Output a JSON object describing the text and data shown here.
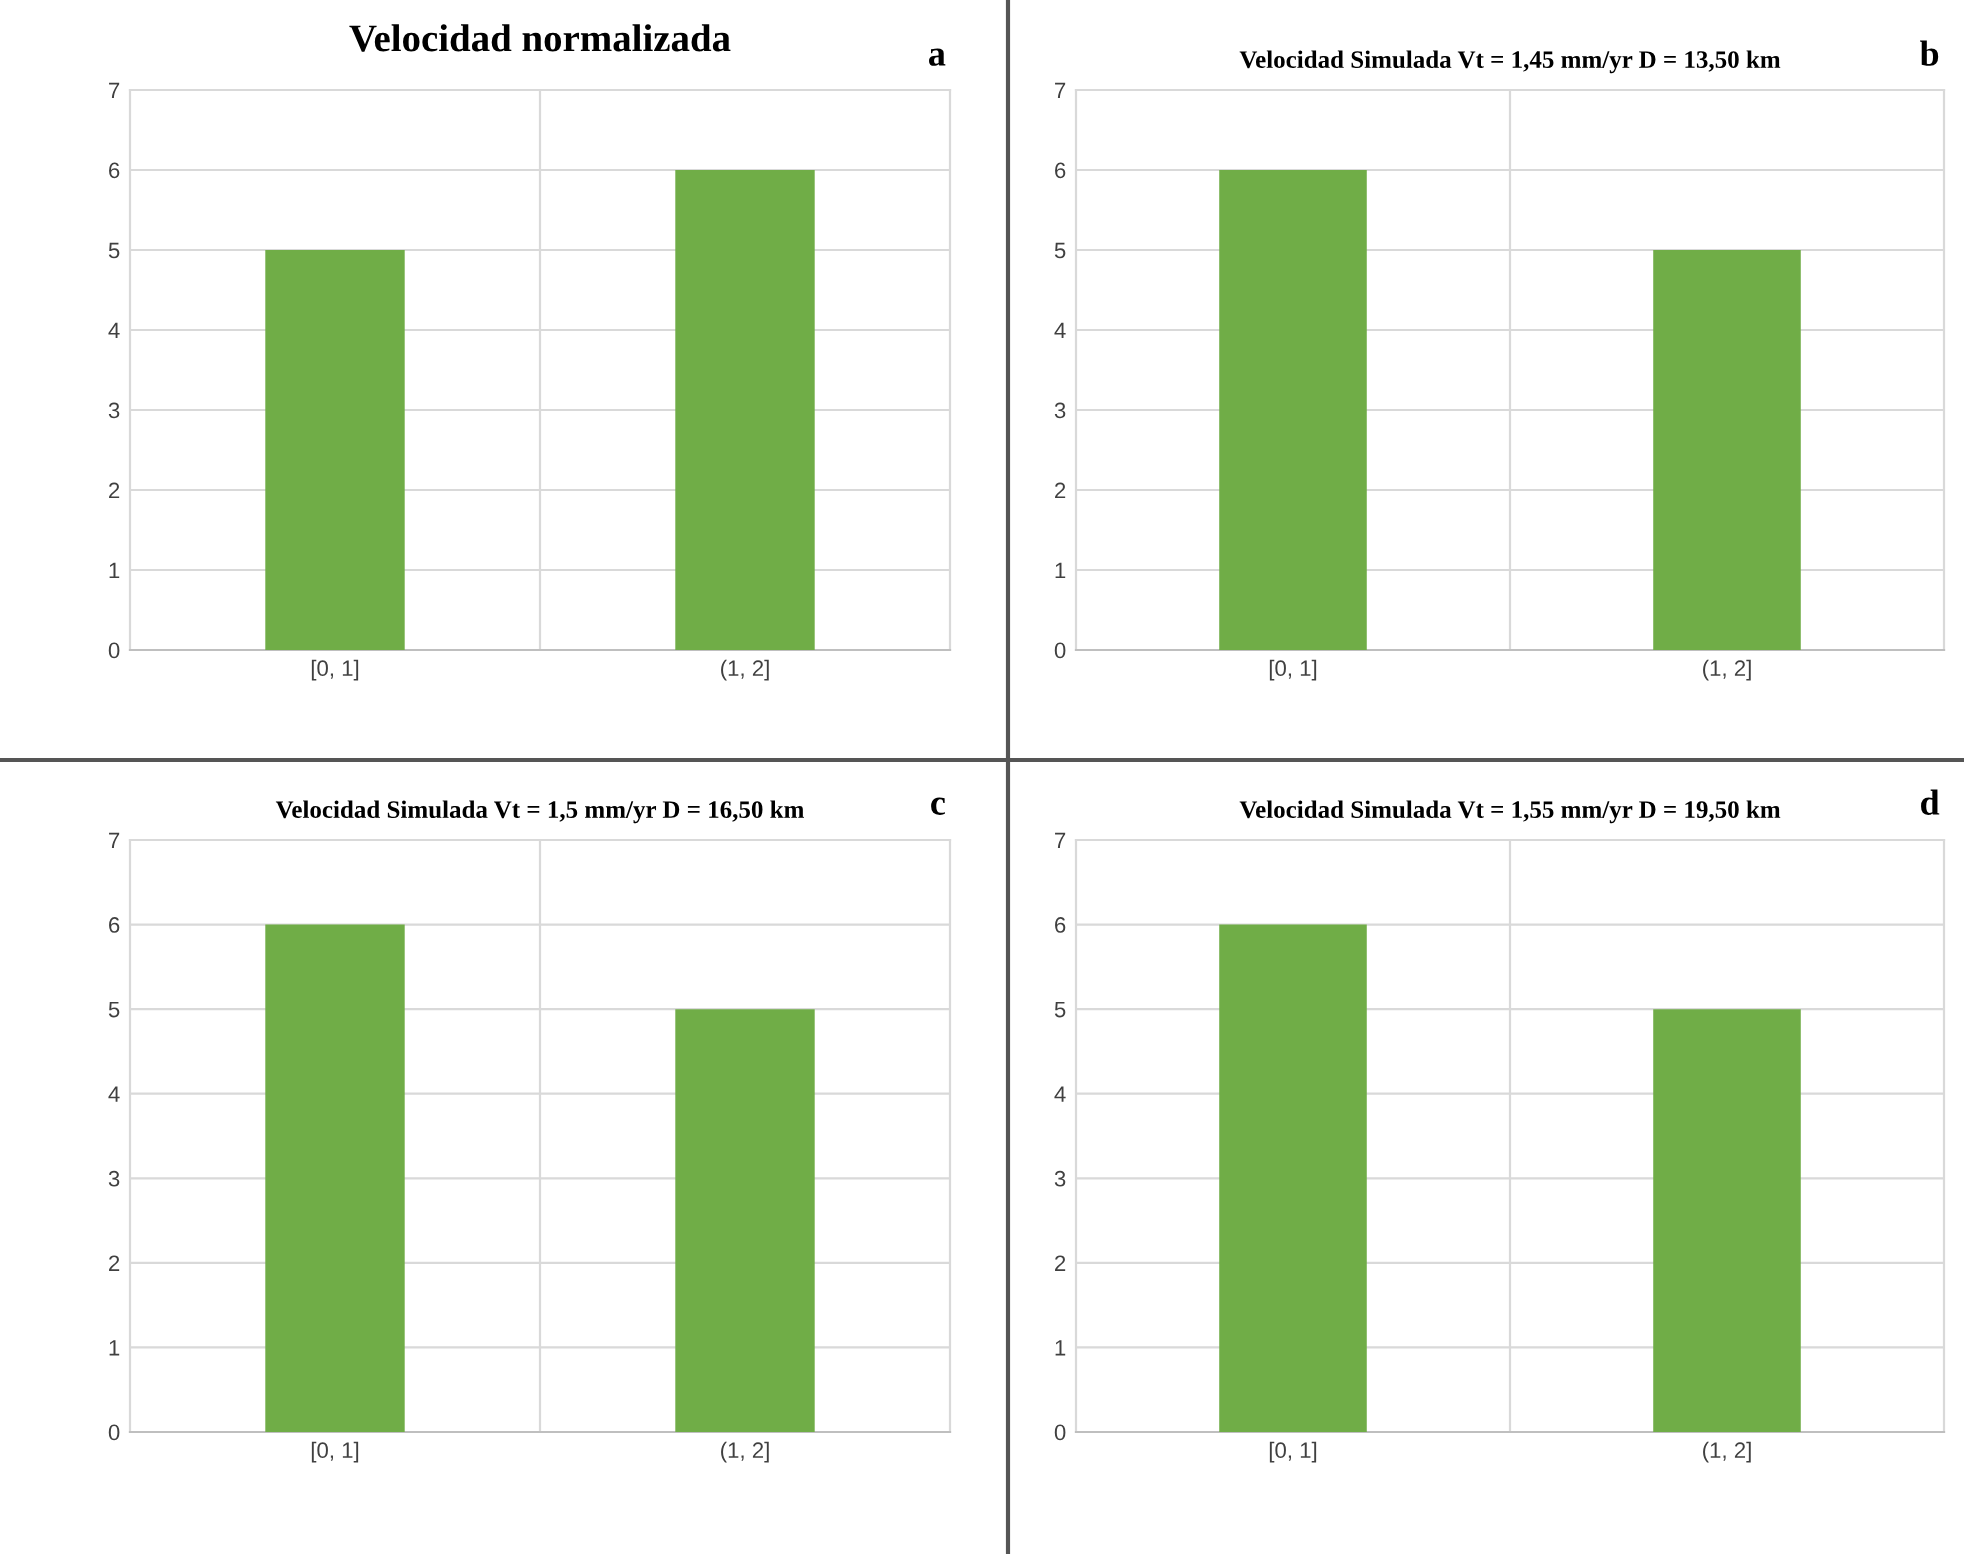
{
  "chart_data": [
    {
      "type": "bar",
      "title": "Velocidad normalizada",
      "categories": [
        "[0, 1]",
        "(1, 2]"
      ],
      "values": [
        5,
        6
      ],
      "color": "#70ad47",
      "ylim": [
        0,
        7
      ],
      "yticks": [
        0,
        1,
        2,
        3,
        4,
        5,
        6,
        7
      ],
      "grid": true,
      "annotations": [
        "a"
      ]
    },
    {
      "type": "bar",
      "title": "Velocidad Simulada Vt = 1,45 mm/yr D = 13,50 km",
      "categories": [
        "[0, 1]",
        "(1, 2]"
      ],
      "values": [
        6,
        5
      ],
      "color": "#70ad47",
      "ylim": [
        0,
        7
      ],
      "yticks": [
        0,
        1,
        2,
        3,
        4,
        5,
        6,
        7
      ],
      "grid": true,
      "annotations": [
        "b"
      ]
    },
    {
      "type": "bar",
      "title": "Velocidad Simulada Vt = 1,5 mm/yr D = 16,50 km",
      "categories": [
        "[0, 1]",
        "(1, 2]"
      ],
      "values": [
        6,
        5
      ],
      "color": "#70ad47",
      "ylim": [
        0,
        7
      ],
      "yticks": [
        0,
        1,
        2,
        3,
        4,
        5,
        6,
        7
      ],
      "grid": true,
      "annotations": [
        "c"
      ]
    },
    {
      "type": "bar",
      "title": "Velocidad Simulada Vt = 1,55 mm/yr D = 19,50 km",
      "categories": [
        "[0, 1]",
        "(1, 2]"
      ],
      "values": [
        6,
        5
      ],
      "color": "#70ad47",
      "ylim": [
        0,
        7
      ],
      "yticks": [
        0,
        1,
        2,
        3,
        4,
        5,
        6,
        7
      ],
      "grid": true,
      "annotations": [
        "d"
      ]
    }
  ]
}
